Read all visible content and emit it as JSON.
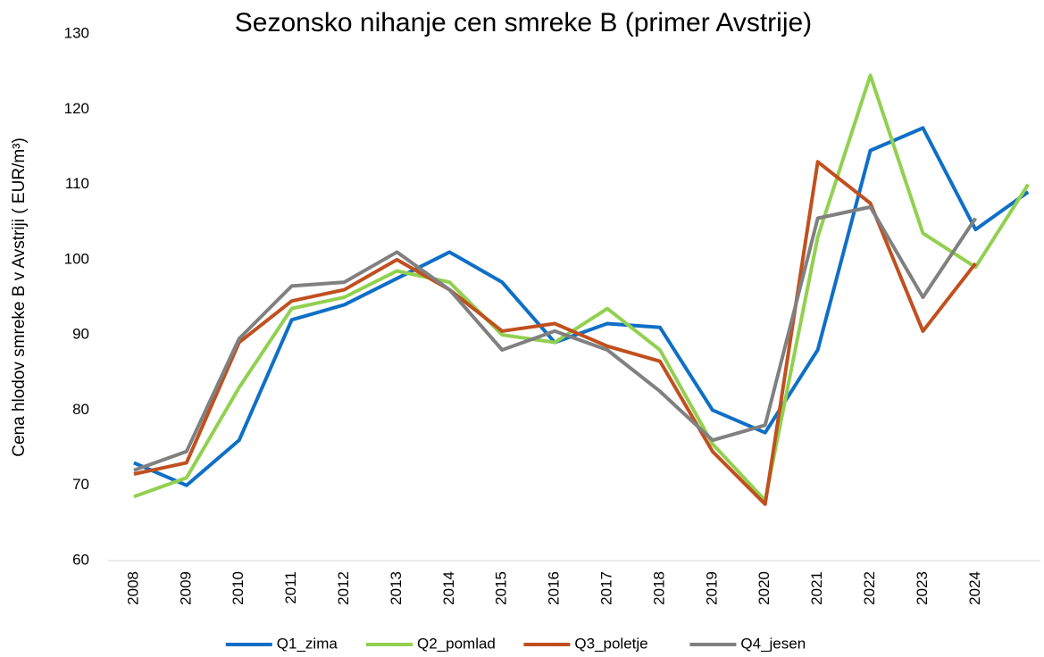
{
  "chart_data": {
    "type": "line",
    "title": "Sezonsko nihanje cen smreke B (primer Avstrije)",
    "y_label": "Cena hlodov smreke B v Avstriji ( EUR/m³)",
    "categories": [
      "2008",
      "2009",
      "2010",
      "2011",
      "2012",
      "2013",
      "2014",
      "2015",
      "2016",
      "2017",
      "2018",
      "2019",
      "2020",
      "2021",
      "2022",
      "2023",
      "2024",
      null
    ],
    "series": [
      {
        "name": "Q1_zima",
        "color": "#0f6fc6",
        "values": [
          73,
          70,
          76,
          92,
          94,
          97.5,
          101,
          97,
          89,
          91.5,
          91,
          80,
          77,
          88,
          114.5,
          117.5,
          104,
          109
        ]
      },
      {
        "name": "Q2_pomlad",
        "color": "#92d050",
        "values": [
          68.5,
          71,
          83,
          93.5,
          95,
          98.5,
          97,
          90,
          89,
          93.5,
          88,
          75.5,
          68,
          103,
          124.5,
          103.5,
          99,
          110
        ]
      },
      {
        "name": "Q3_poletje",
        "color": "#c0501f",
        "values": [
          71.5,
          73,
          89,
          94.5,
          96,
          100,
          96,
          90.5,
          91.5,
          88.5,
          86.5,
          74.5,
          67.5,
          113,
          107.5,
          90.5,
          99.5,
          null
        ]
      },
      {
        "name": "Q4_jesen",
        "color": "#808080",
        "values": [
          72,
          74.5,
          89.5,
          96.5,
          97,
          101,
          96,
          88,
          90.5,
          88,
          82.5,
          76,
          78,
          105.5,
          107,
          95,
          105.5,
          null
        ]
      }
    ],
    "ylim": [
      60,
      130
    ],
    "yticks": [
      60,
      70,
      80,
      90,
      100,
      110,
      120,
      130
    ],
    "grid": false,
    "legend": "bottom"
  }
}
